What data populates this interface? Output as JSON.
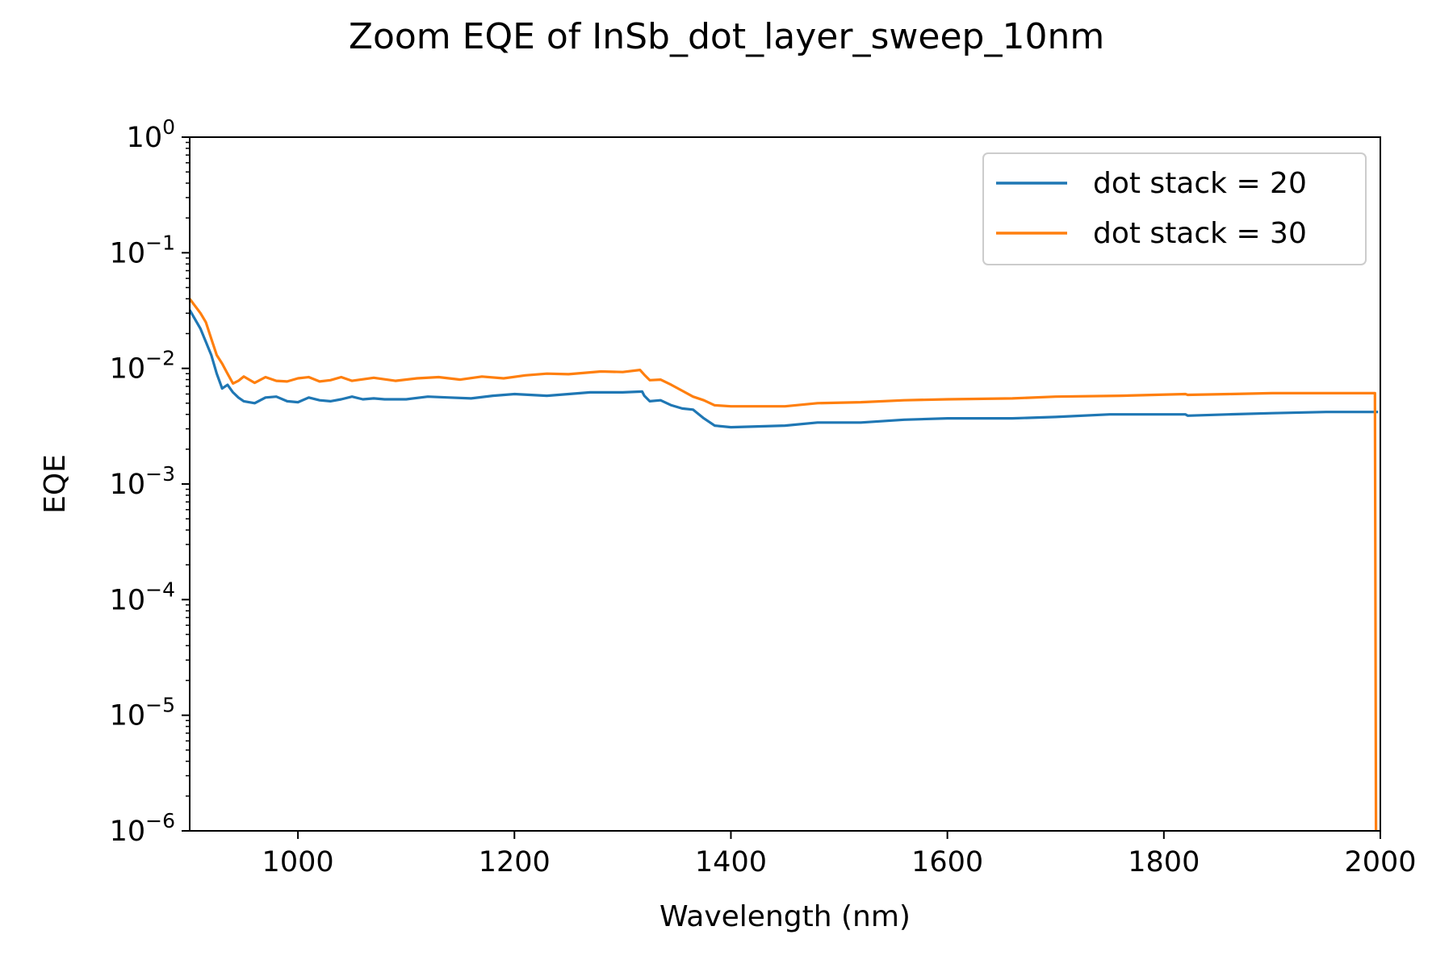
{
  "chart_data": {
    "type": "line",
    "title": "Zoom EQE of InSb_dot_layer_sweep_10nm",
    "xlabel": "Wavelength (nm)",
    "ylabel": "EQE",
    "xlim": [
      900,
      2000
    ],
    "ylim": [
      1e-06,
      1
    ],
    "yscale": "log",
    "grid": false,
    "legend_position": "upper right",
    "x_ticks": [
      {
        "value": 1000,
        "label": "1000"
      },
      {
        "value": 1200,
        "label": "1200"
      },
      {
        "value": 1400,
        "label": "1400"
      },
      {
        "value": 1600,
        "label": "1600"
      },
      {
        "value": 1800,
        "label": "1800"
      },
      {
        "value": 2000,
        "label": "2000"
      }
    ],
    "y_ticks": [
      {
        "value": 1e-06,
        "base": "10",
        "exp": "−6"
      },
      {
        "value": 1e-05,
        "base": "10",
        "exp": "−5"
      },
      {
        "value": 0.0001,
        "base": "10",
        "exp": "−4"
      },
      {
        "value": 0.001,
        "base": "10",
        "exp": "−3"
      },
      {
        "value": 0.01,
        "base": "10",
        "exp": "−2"
      },
      {
        "value": 0.1,
        "base": "10",
        "exp": "−1"
      },
      {
        "value": 1,
        "base": "10",
        "exp": "0"
      }
    ],
    "series": [
      {
        "name": "dot stack = 20",
        "color": "#1f77b4",
        "points": [
          [
            900,
            0.032
          ],
          [
            910,
            0.022
          ],
          [
            920,
            0.013
          ],
          [
            925,
            0.009
          ],
          [
            930,
            0.0067
          ],
          [
            935,
            0.0072
          ],
          [
            940,
            0.0062
          ],
          [
            945,
            0.0056
          ],
          [
            950,
            0.0052
          ],
          [
            960,
            0.005
          ],
          [
            970,
            0.0056
          ],
          [
            980,
            0.0057
          ],
          [
            990,
            0.0052
          ],
          [
            1000,
            0.0051
          ],
          [
            1010,
            0.0056
          ],
          [
            1020,
            0.0053
          ],
          [
            1030,
            0.0052
          ],
          [
            1040,
            0.0054
          ],
          [
            1050,
            0.0057
          ],
          [
            1060,
            0.0054
          ],
          [
            1070,
            0.0055
          ],
          [
            1080,
            0.0054
          ],
          [
            1100,
            0.0054
          ],
          [
            1120,
            0.0057
          ],
          [
            1140,
            0.0056
          ],
          [
            1160,
            0.0055
          ],
          [
            1180,
            0.0058
          ],
          [
            1200,
            0.006
          ],
          [
            1230,
            0.0058
          ],
          [
            1250,
            0.006
          ],
          [
            1270,
            0.0062
          ],
          [
            1300,
            0.0062
          ],
          [
            1318,
            0.0063
          ],
          [
            1320,
            0.0058
          ],
          [
            1325,
            0.0052
          ],
          [
            1335,
            0.0053
          ],
          [
            1345,
            0.0048
          ],
          [
            1355,
            0.0045
          ],
          [
            1365,
            0.0044
          ],
          [
            1375,
            0.0037
          ],
          [
            1385,
            0.0032
          ],
          [
            1400,
            0.0031
          ],
          [
            1450,
            0.0032
          ],
          [
            1480,
            0.0034
          ],
          [
            1520,
            0.0034
          ],
          [
            1560,
            0.0036
          ],
          [
            1600,
            0.0037
          ],
          [
            1660,
            0.0037
          ],
          [
            1700,
            0.0038
          ],
          [
            1750,
            0.004
          ],
          [
            1820,
            0.004
          ],
          [
            1822,
            0.0039
          ],
          [
            1860,
            0.004
          ],
          [
            1900,
            0.0041
          ],
          [
            1950,
            0.0042
          ],
          [
            1998,
            0.0042
          ]
        ]
      },
      {
        "name": "dot stack = 30",
        "color": "#ff7f0e",
        "points": [
          [
            900,
            0.04
          ],
          [
            910,
            0.03
          ],
          [
            915,
            0.025
          ],
          [
            920,
            0.018
          ],
          [
            925,
            0.013
          ],
          [
            930,
            0.011
          ],
          [
            935,
            0.009
          ],
          [
            940,
            0.0074
          ],
          [
            945,
            0.0078
          ],
          [
            950,
            0.0085
          ],
          [
            960,
            0.0075
          ],
          [
            970,
            0.0084
          ],
          [
            980,
            0.0078
          ],
          [
            990,
            0.0077
          ],
          [
            1000,
            0.0082
          ],
          [
            1010,
            0.0084
          ],
          [
            1020,
            0.0077
          ],
          [
            1030,
            0.0079
          ],
          [
            1040,
            0.0084
          ],
          [
            1050,
            0.0078
          ],
          [
            1070,
            0.0083
          ],
          [
            1090,
            0.0078
          ],
          [
            1110,
            0.0082
          ],
          [
            1130,
            0.0084
          ],
          [
            1150,
            0.008
          ],
          [
            1170,
            0.0085
          ],
          [
            1190,
            0.0082
          ],
          [
            1210,
            0.0087
          ],
          [
            1230,
            0.009
          ],
          [
            1250,
            0.0089
          ],
          [
            1280,
            0.0094
          ],
          [
            1300,
            0.0093
          ],
          [
            1316,
            0.0097
          ],
          [
            1320,
            0.0088
          ],
          [
            1325,
            0.0079
          ],
          [
            1335,
            0.008
          ],
          [
            1345,
            0.0072
          ],
          [
            1355,
            0.0064
          ],
          [
            1365,
            0.0057
          ],
          [
            1375,
            0.0053
          ],
          [
            1385,
            0.0048
          ],
          [
            1400,
            0.0047
          ],
          [
            1450,
            0.0047
          ],
          [
            1480,
            0.005
          ],
          [
            1520,
            0.0051
          ],
          [
            1560,
            0.0053
          ],
          [
            1600,
            0.0054
          ],
          [
            1660,
            0.0055
          ],
          [
            1700,
            0.0057
          ],
          [
            1760,
            0.0058
          ],
          [
            1820,
            0.006
          ],
          [
            1822,
            0.0059
          ],
          [
            1860,
            0.006
          ],
          [
            1900,
            0.0061
          ],
          [
            1950,
            0.0061
          ],
          [
            1995,
            0.0061
          ],
          [
            1996,
            1e-06
          ]
        ]
      }
    ]
  }
}
